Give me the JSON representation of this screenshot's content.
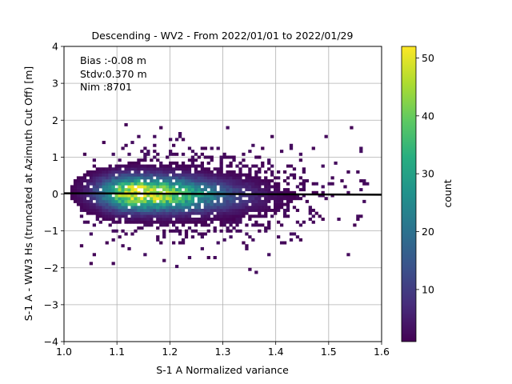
{
  "chart_data": {
    "type": "heatmap",
    "title": "Descending - WV2 - From 2022/01/01 to 2022/01/29",
    "xlabel": "S-1 A Normalized variance",
    "ylabel": "S-1 A - WW3 Hs (truncated at Azimuth Cut Off) [m]",
    "xlim": [
      1.0,
      1.6
    ],
    "ylim": [
      -4,
      4
    ],
    "x_ticks": [
      "1.0",
      "1.1",
      "1.2",
      "1.3",
      "1.4",
      "1.5",
      "1.6"
    ],
    "y_ticks": [
      "4",
      "3",
      "2",
      "1",
      "0",
      "−1",
      "−2",
      "−3",
      "−4"
    ],
    "grid": true,
    "annotations": [
      "Bias :-0.08 m",
      "Stdv:0.370 m",
      "Nim :8701"
    ],
    "regression_line": {
      "x": [
        1.0,
        1.6
      ],
      "y": [
        0.02,
        -0.02
      ]
    },
    "density_core": {
      "x": 1.135,
      "y": -0.1,
      "peak_count": 52
    },
    "colorbar": {
      "label": "count",
      "min": 1,
      "max": 52,
      "ticks": [
        "10",
        "20",
        "30",
        "40",
        "50"
      ],
      "colormap": "viridis"
    }
  }
}
